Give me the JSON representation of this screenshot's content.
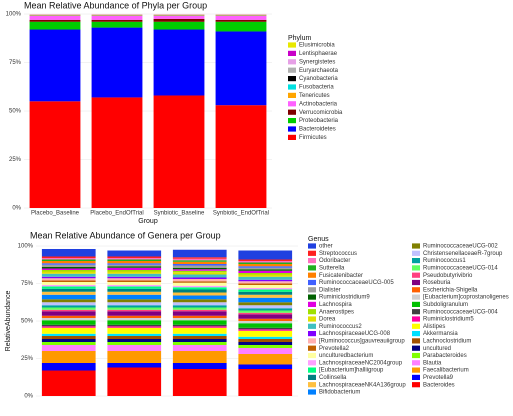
{
  "chart_data": [
    {
      "type": "stacked_bar",
      "title": "Mean Relative Abundance of Phyla per Group",
      "x_label": "Group",
      "legend_title": "Phylum",
      "categories": [
        "Placebo_Baseline",
        "Placebo_EndOfTrial",
        "Synbiotic_Baseline",
        "Synbiotic_EndOfTrial"
      ],
      "ylim": [
        0,
        100
      ],
      "yticks": [
        {
          "value": 0,
          "label": "0%"
        },
        {
          "value": 25,
          "label": "25%"
        },
        {
          "value": 50,
          "label": "50%"
        },
        {
          "value": 75,
          "label": "75%"
        },
        {
          "value": 100,
          "label": "100%"
        }
      ],
      "series": [
        {
          "name": "Elusimicrobia",
          "color": "#e8e800",
          "values": [
            0.1,
            0.1,
            0.1,
            0.1
          ]
        },
        {
          "name": "Lentisphaerae",
          "color": "#c800c8",
          "values": [
            0.1,
            0.1,
            0.1,
            0.1
          ]
        },
        {
          "name": "Synergistetes",
          "color": "#e6a0e6",
          "values": [
            0.1,
            0.1,
            0.1,
            0.1
          ]
        },
        {
          "name": "Euryarchaeota",
          "color": "#b0b0b0",
          "values": [
            0.1,
            0.1,
            0.1,
            0.1
          ]
        },
        {
          "name": "Cyanobacteria",
          "color": "#000000",
          "values": [
            0.1,
            0.1,
            0.1,
            0.1
          ]
        },
        {
          "name": "Fusobacteria",
          "color": "#00e0e0",
          "values": [
            0.1,
            0.1,
            0.1,
            0.1
          ]
        },
        {
          "name": "Tenericutes",
          "color": "#ffa500",
          "values": [
            0.2,
            0.2,
            0.2,
            0.2
          ]
        },
        {
          "name": "Actinobacteria",
          "color": "#ff60ff",
          "values": [
            2,
            2,
            1.5,
            2
          ]
        },
        {
          "name": "Verrucomicrobia",
          "color": "#800000",
          "values": [
            1,
            1,
            1.5,
            1
          ]
        },
        {
          "name": "Proteobacteria",
          "color": "#00cc00",
          "values": [
            4,
            3,
            4,
            5
          ]
        },
        {
          "name": "Bacteroidetes",
          "color": "#0000ff",
          "values": [
            37,
            36,
            34,
            38
          ]
        },
        {
          "name": "Firmicutes",
          "color": "#ff0000",
          "values": [
            55,
            57,
            58,
            53
          ]
        }
      ]
    },
    {
      "type": "stacked_bar",
      "title": "Mean Relative Abundance of Genera per Group",
      "y_label": "RelativeAbundance",
      "legend_title": "Genus",
      "categories": [
        null,
        null,
        null,
        null
      ],
      "ylim": [
        0,
        100
      ],
      "yticks": [
        {
          "value": 0,
          "label": "0%"
        },
        {
          "value": 25,
          "label": "25%"
        },
        {
          "value": 50,
          "label": "50%"
        },
        {
          "value": 75,
          "label": "75%"
        },
        {
          "value": 100,
          "label": "100%"
        }
      ],
      "series": [
        {
          "name": "other",
          "color": "#2040e0",
          "values": [
            5,
            4,
            5,
            6
          ]
        },
        {
          "name": "Streptococcus",
          "color": "#ff2020",
          "values": [
            1,
            1,
            1,
            1
          ]
        },
        {
          "name": "Odoribacter",
          "color": "#ff70c0",
          "values": [
            1,
            1,
            1,
            1
          ]
        },
        {
          "name": "Sutterella",
          "color": "#20b020",
          "values": [
            1,
            1,
            1,
            1
          ]
        },
        {
          "name": "Fusicatenibacter",
          "color": "#ff8000",
          "values": [
            1.5,
            1.5,
            1.5,
            1.5
          ]
        },
        {
          "name": "RuminococcaceaeUCG-005",
          "color": "#4060ff",
          "values": [
            1,
            1,
            1,
            1
          ]
        },
        {
          "name": "Dialister",
          "color": "#a0a0a0",
          "values": [
            1.5,
            1,
            1.5,
            1
          ]
        },
        {
          "name": "Ruminiclostridium9",
          "color": "#006000",
          "values": [
            1,
            1,
            1,
            1
          ]
        },
        {
          "name": "Lachnospira",
          "color": "#e000e0",
          "values": [
            1,
            1.5,
            1,
            1.5
          ]
        },
        {
          "name": "Anaerostipes",
          "color": "#a0e000",
          "values": [
            1,
            1,
            1,
            1
          ]
        },
        {
          "name": "Dorea",
          "color": "#e0e000",
          "values": [
            1.5,
            1.5,
            1.5,
            1.5
          ]
        },
        {
          "name": "Ruminococcus2",
          "color": "#40c0c0",
          "values": [
            2,
            2,
            2,
            2
          ]
        },
        {
          "name": "LachnospiraceaeUCG-008",
          "color": "#8000ff",
          "values": [
            1,
            1,
            1,
            1
          ]
        },
        {
          "name": "[Ruminococcus]gauvreauiigroup",
          "color": "#ffb0b0",
          "values": [
            1.5,
            1.5,
            1.5,
            1.5
          ]
        },
        {
          "name": "Prevotella2",
          "color": "#c06000",
          "values": [
            1,
            1,
            1,
            1
          ]
        },
        {
          "name": "unculturedbacterium",
          "color": "#ffffa0",
          "values": [
            2,
            2,
            2,
            2
          ]
        },
        {
          "name": "LachnospiraceaeNC2004group",
          "color": "#ffa0ff",
          "values": [
            1,
            1,
            1,
            1
          ]
        },
        {
          "name": "[Eubacterium]halliigroup",
          "color": "#00ff80",
          "values": [
            1.5,
            1.5,
            1.5,
            1.5
          ]
        },
        {
          "name": "Collinsella",
          "color": "#008080",
          "values": [
            2,
            2,
            2,
            2
          ]
        },
        {
          "name": "LachnospiraceaeNK4A136group",
          "color": "#ffc040",
          "values": [
            2,
            2,
            2,
            2
          ]
        },
        {
          "name": "Bifidobacterium",
          "color": "#0080ff",
          "values": [
            3,
            3,
            2.5,
            3
          ]
        },
        {
          "name": "RuminococcaceaeUCG-002",
          "color": "#808000",
          "values": [
            2,
            2,
            2,
            2
          ]
        },
        {
          "name": "ChristensenellaceaeR-7group",
          "color": "#c0c0ff",
          "values": [
            2,
            2,
            2,
            2
          ]
        },
        {
          "name": "Ruminococcus1",
          "color": "#00a0a0",
          "values": [
            1.5,
            1.5,
            1.5,
            1.5
          ]
        },
        {
          "name": "RuminococcaceaeUCG-014",
          "color": "#60ff60",
          "values": [
            1.5,
            1.5,
            1.5,
            1.5
          ]
        },
        {
          "name": "Pseudobutyrivibrio",
          "color": "#ff4080",
          "values": [
            1,
            1,
            1,
            1
          ]
        },
        {
          "name": "Roseburia",
          "color": "#800080",
          "values": [
            3,
            3,
            3,
            3
          ]
        },
        {
          "name": "Escherichia-Shigella",
          "color": "#ff6000",
          "values": [
            1.5,
            1.5,
            1.5,
            1.5
          ]
        },
        {
          "name": "[Eubacterium]coprostanoligenes",
          "color": "#d0d0d0",
          "values": [
            1.5,
            1.5,
            1.5,
            1.5
          ]
        },
        {
          "name": "Subdoligranulum",
          "color": "#00c000",
          "values": [
            3,
            3,
            3,
            3
          ]
        },
        {
          "name": "RuminococcaceaeUCG-004",
          "color": "#404040",
          "values": [
            1,
            1,
            1,
            1
          ]
        },
        {
          "name": "Ruminiclostridium5",
          "color": "#ff00a0",
          "values": [
            1,
            1,
            1,
            1
          ]
        },
        {
          "name": "Alistipes",
          "color": "#ffff00",
          "values": [
            4,
            4,
            4,
            4
          ]
        },
        {
          "name": "Akkermansia",
          "color": "#00e0ff",
          "values": [
            1.5,
            1.5,
            1.5,
            1.5
          ]
        },
        {
          "name": "Lachnoclostridium",
          "color": "#a05000",
          "values": [
            2,
            2,
            2,
            2
          ]
        },
        {
          "name": "uncultured",
          "color": "#000080",
          "values": [
            2,
            2,
            2,
            2
          ]
        },
        {
          "name": "Parabacteroides",
          "color": "#80ff00",
          "values": [
            2,
            2,
            2,
            2
          ]
        },
        {
          "name": "Blautia",
          "color": "#ff80ff",
          "values": [
            4,
            4,
            4,
            4
          ]
        },
        {
          "name": "Faecalibacterium",
          "color": "#ff9900",
          "values": [
            8,
            8,
            8,
            7
          ]
        },
        {
          "name": "Prevotella9",
          "color": "#0000ff",
          "values": [
            5,
            3,
            4,
            3
          ]
        },
        {
          "name": "Bacteroides",
          "color": "#ff0000",
          "values": [
            17,
            19,
            18,
            18
          ]
        }
      ]
    }
  ]
}
